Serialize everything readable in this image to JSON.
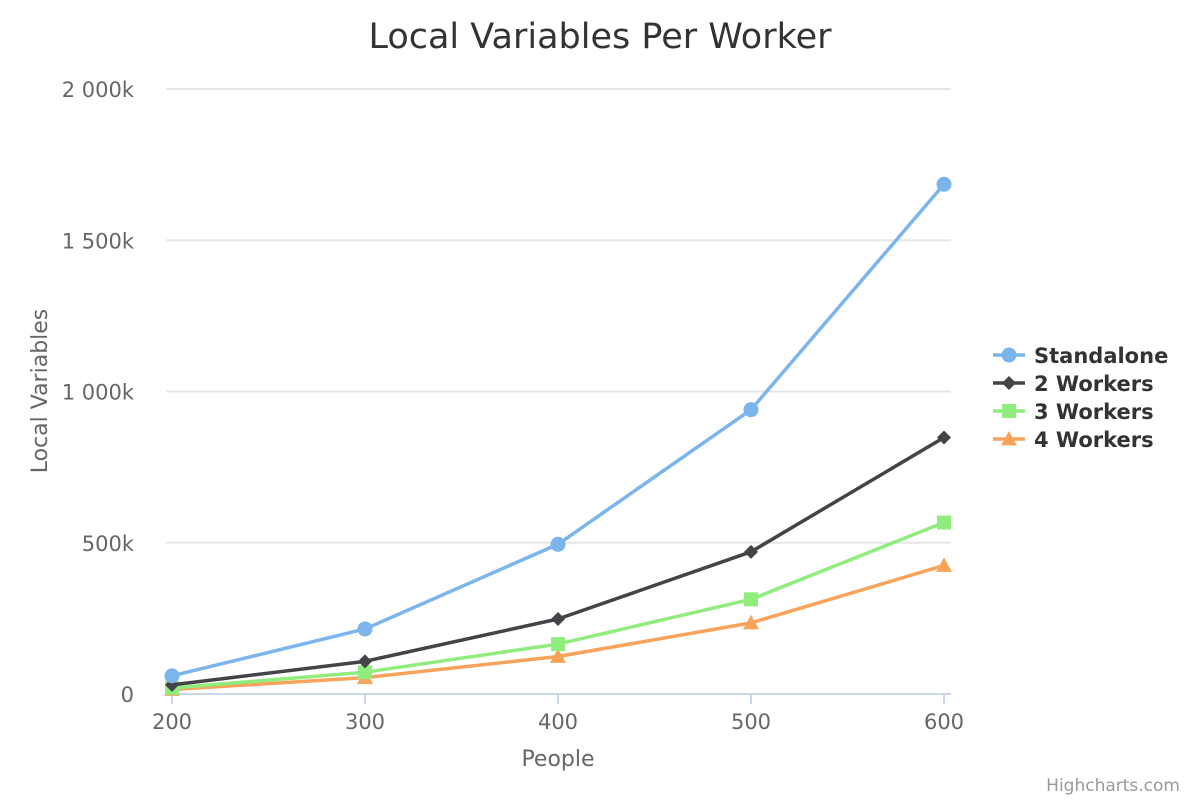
{
  "chart_data": {
    "type": "line",
    "title": "Local Variables Per Worker",
    "xlabel": "People",
    "ylabel": "Local Variables",
    "x": [
      200,
      300,
      400,
      500,
      600
    ],
    "xlim": [
      200,
      600
    ],
    "ylim": [
      0,
      2000000
    ],
    "x_ticks": [
      "200",
      "300",
      "400",
      "500",
      "600"
    ],
    "y_ticks": [
      {
        "value": 0,
        "label": "0"
      },
      {
        "value": 500000,
        "label": "500k"
      },
      {
        "value": 1000000,
        "label": "1 000k"
      },
      {
        "value": 1500000,
        "label": "1 500k"
      },
      {
        "value": 2000000,
        "label": "2 000k"
      }
    ],
    "grid": true,
    "legend_position": "right",
    "series": [
      {
        "name": "Standalone",
        "color": "#7cb5ec",
        "marker": "circle",
        "values": [
          60000,
          215000,
          495000,
          940000,
          1685000
        ]
      },
      {
        "name": "2 Workers",
        "color": "#434348",
        "marker": "diamond",
        "values": [
          30000,
          108000,
          248000,
          470000,
          848000
        ]
      },
      {
        "name": "3 Workers",
        "color": "#90ed7d",
        "marker": "square",
        "values": [
          20000,
          72000,
          165000,
          313000,
          567000
        ]
      },
      {
        "name": "4 Workers",
        "color": "#f7a35c",
        "marker": "triangle",
        "values": [
          15000,
          54000,
          124000,
          235000,
          425000
        ]
      }
    ]
  },
  "credits": "Highcharts.com"
}
